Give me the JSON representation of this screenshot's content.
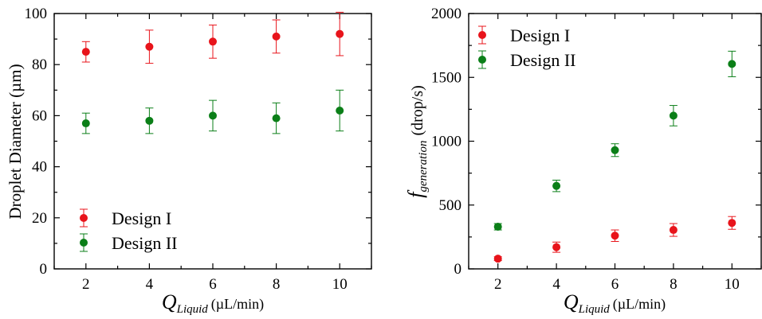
{
  "chart_data": [
    {
      "type": "scatter",
      "xlabel": {
        "symbol": "Q",
        "subscript": "Liquid",
        "unit": "(µL/min)"
      },
      "ylabel": "Droplet Diameter (µm)",
      "xlim": [
        1,
        11
      ],
      "ylim": [
        0,
        100
      ],
      "x_ticks": [
        2,
        4,
        6,
        8,
        10
      ],
      "y_ticks": [
        0,
        20,
        40,
        60,
        80,
        100
      ],
      "legend_position": "bottom-left",
      "grid": false,
      "x": [
        2,
        4,
        6,
        8,
        10
      ],
      "series": [
        {
          "name": "Design I",
          "color": "#e8141b",
          "values": [
            85,
            87,
            89,
            91,
            92
          ],
          "errors": [
            4,
            6.5,
            6.5,
            6.5,
            8.5
          ]
        },
        {
          "name": "Design II",
          "color": "#0b7f18",
          "values": [
            57,
            58,
            60,
            59,
            62
          ],
          "errors": [
            4,
            5,
            6,
            6,
            8
          ]
        }
      ]
    },
    {
      "type": "scatter",
      "xlabel": {
        "symbol": "Q",
        "subscript": "Liquid",
        "unit": "(µL/min)"
      },
      "ylabel": {
        "symbol": "f",
        "subscript": "generation",
        "unit": "(drop/s)"
      },
      "xlim": [
        1,
        11
      ],
      "ylim": [
        0,
        2000
      ],
      "x_ticks": [
        2,
        4,
        6,
        8,
        10
      ],
      "y_ticks": [
        0,
        500,
        1000,
        1500,
        2000
      ],
      "legend_position": "top-left",
      "grid": false,
      "x": [
        2,
        4,
        6,
        8,
        10
      ],
      "series": [
        {
          "name": "Design I",
          "color": "#e8141b",
          "values": [
            80,
            170,
            260,
            305,
            360
          ],
          "errors": [
            15,
            40,
            45,
            50,
            50
          ]
        },
        {
          "name": "Design II",
          "color": "#0b7f18",
          "values": [
            330,
            650,
            930,
            1200,
            1605
          ],
          "errors": [
            25,
            45,
            50,
            80,
            100
          ]
        }
      ]
    }
  ]
}
